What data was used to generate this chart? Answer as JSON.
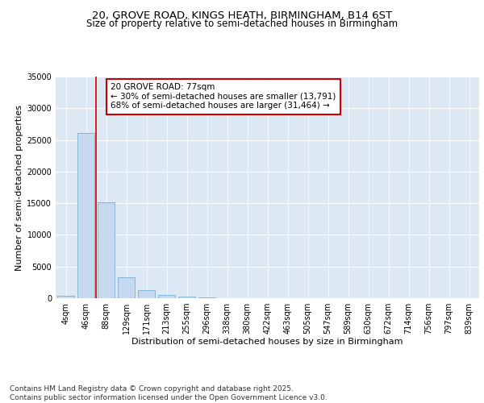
{
  "title_line1": "20, GROVE ROAD, KINGS HEATH, BIRMINGHAM, B14 6ST",
  "title_line2": "Size of property relative to semi-detached houses in Birmingham",
  "xlabel": "Distribution of semi-detached houses by size in Birmingham",
  "ylabel": "Number of semi-detached properties",
  "bin_labels": [
    "4sqm",
    "46sqm",
    "88sqm",
    "129sqm",
    "171sqm",
    "213sqm",
    "255sqm",
    "296sqm",
    "338sqm",
    "380sqm",
    "422sqm",
    "463sqm",
    "505sqm",
    "547sqm",
    "589sqm",
    "630sqm",
    "672sqm",
    "714sqm",
    "756sqm",
    "797sqm",
    "839sqm"
  ],
  "bar_values": [
    350,
    26100,
    15200,
    3350,
    1250,
    450,
    200,
    80,
    20,
    5,
    2,
    1,
    0,
    0,
    0,
    0,
    0,
    0,
    0,
    0,
    0
  ],
  "bar_color": "#c5d9f0",
  "bar_edgecolor": "#7aafd4",
  "bg_color": "#dde8f5",
  "grid_color": "#ffffff",
  "red_line_x": 1.5,
  "annotation_text": "20 GROVE ROAD: 77sqm\n← 30% of semi-detached houses are smaller (13,791)\n68% of semi-detached houses are larger (31,464) →",
  "annotation_box_color": "#ffffff",
  "annotation_border_color": "#cc0000",
  "ylim": [
    0,
    35000
  ],
  "yticks": [
    0,
    5000,
    10000,
    15000,
    20000,
    25000,
    30000,
    35000
  ],
  "footer": "Contains HM Land Registry data © Crown copyright and database right 2025.\nContains public sector information licensed under the Open Government Licence v3.0.",
  "title_fontsize": 9.5,
  "subtitle_fontsize": 8.5,
  "axis_label_fontsize": 8,
  "tick_fontsize": 7,
  "annotation_fontsize": 7.5,
  "footer_fontsize": 6.5
}
